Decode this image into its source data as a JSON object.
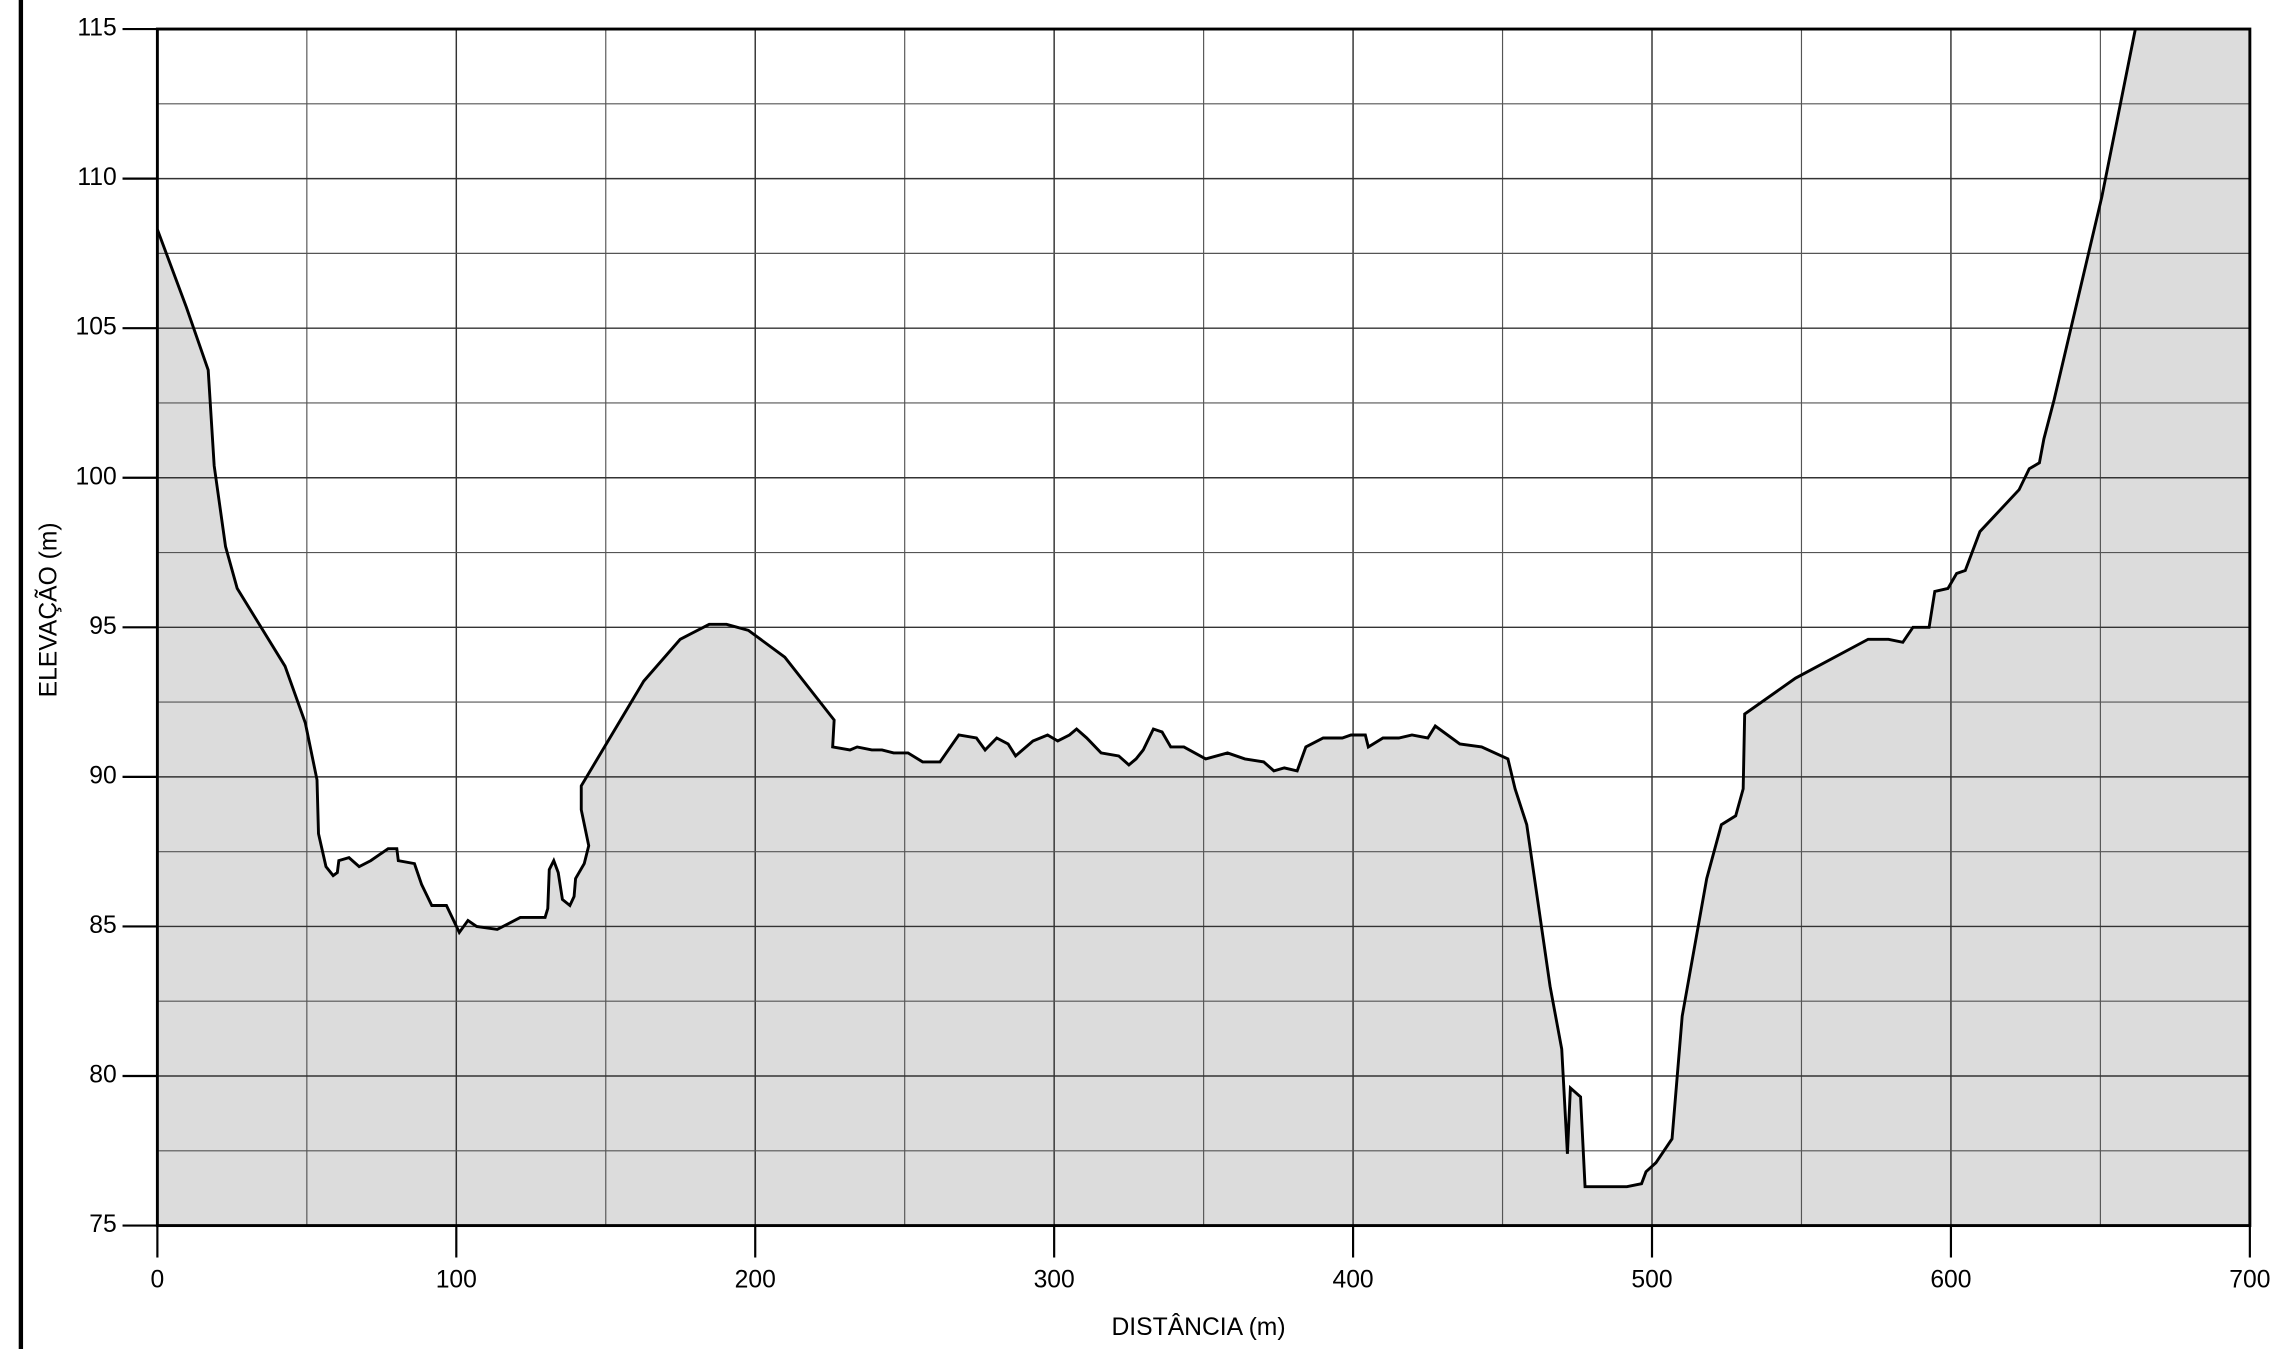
{
  "chart_data": {
    "type": "area",
    "x_label": "DISTÂNCIA  (m)",
    "y_label": "ELEVAÇÃO  (m)",
    "xlim": [
      0,
      700
    ],
    "xticks": [
      0,
      100,
      200,
      300,
      400,
      500,
      600,
      700
    ],
    "ylim": [
      75,
      115
    ],
    "yticks": [
      75,
      80,
      85,
      90,
      95,
      100,
      105,
      110,
      115
    ],
    "grid": true,
    "color": "#dcdcdc",
    "line_color": "#000000",
    "x": [
      0,
      9.7,
      17,
      19,
      22.8,
      26.7,
      42.7,
      49.5,
      53.4,
      53.9,
      56.4,
      58.8,
      60.2,
      60.7,
      64.1,
      67.5,
      71.4,
      77.2,
      80.1,
      80.6,
      86,
      88.4,
      91.8,
      96.7,
      101,
      103.9,
      106.8,
      113.7,
      121.4,
      129.7,
      130.6,
      131.1,
      132.6,
      134.1,
      135.5,
      138,
      139.4,
      139.9,
      142.8,
      144.3,
      141.8,
      141.8,
      162.7,
      174.9,
      184.6,
      190.4,
      197.7,
      209.9,
      226.4,
      225.9,
      231.7,
      234.1,
      239,
      242.4,
      246.3,
      251.1,
      256,
      261.8,
      268.1,
      274,
      276.9,
      280.8,
      284.6,
      287.1,
      292.9,
      297.8,
      301.2,
      305.1,
      307.5,
      310.9,
      315.7,
      321.6,
      325,
      327.4,
      329.8,
      333.2,
      336.1,
      339,
      343.4,
      350.7,
      358,
      363.8,
      370.1,
      373.5,
      377,
      381.3,
      384.2,
      390,
      396.4,
      399.3,
      404.1,
      405.1,
      410,
      415.3,
      419.7,
      425,
      427.5,
      435.7,
      443,
      451.8,
      454.2,
      458.1,
      465.9,
      469.8,
      471.7,
      472.7,
      476.1,
      477.6,
      482.9,
      491.6,
      496.5,
      498,
      501.3,
      506.7,
      510.1,
      518.3,
      523.2,
      528,
      530.5,
      531,
      548,
      572.3,
      579.1,
      583.9,
      587.3,
      592.7,
      594.6,
      599,
      601.9,
      604.8,
      609.7,
      622.8,
      626.2,
      629.6,
      631.1,
      634.5,
      650.5,
      661.7
    ],
    "values": [
      108.3,
      105.7,
      103.6,
      100.4,
      97.7,
      96.3,
      93.7,
      91.8,
      89.9,
      88.1,
      87,
      86.7,
      86.8,
      87.2,
      87.3,
      87,
      87.2,
      87.6,
      87.6,
      87.2,
      87.1,
      86.4,
      85.7,
      85.7,
      84.8,
      85.2,
      85,
      84.9,
      85.3,
      85.3,
      85.6,
      86.9,
      87.2,
      86.8,
      85.9,
      85.7,
      86,
      86.6,
      87.1,
      87.7,
      88.9,
      89.7,
      93.2,
      94.6,
      95.1,
      95.1,
      94.9,
      94,
      91.9,
      91,
      90.9,
      91,
      90.9,
      90.9,
      90.8,
      90.8,
      90.5,
      90.5,
      91.4,
      91.3,
      90.9,
      91.3,
      91.1,
      90.7,
      91.2,
      91.4,
      91.2,
      91.4,
      91.6,
      91.3,
      90.8,
      90.7,
      90.4,
      90.6,
      90.9,
      91.6,
      91.5,
      91,
      91,
      90.6,
      90.8,
      90.6,
      90.5,
      90.2,
      90.3,
      90.2,
      91,
      91.3,
      91.3,
      91.4,
      91.4,
      91,
      91.3,
      91.3,
      91.4,
      91.3,
      91.7,
      91.1,
      91,
      90.6,
      89.6,
      88.4,
      83,
      80.9,
      77.4,
      79.6,
      79.3,
      76.3,
      76.3,
      76.3,
      76.4,
      76.8,
      77.1,
      77.9,
      82,
      86.6,
      88.4,
      88.7,
      89.6,
      92.1,
      93.3,
      94.6,
      94.6,
      94.5,
      95,
      95,
      96.2,
      96.3,
      96.8,
      96.9,
      98.2,
      99.6,
      100.3,
      100.5,
      101.3,
      102.6,
      109.4,
      115
    ]
  }
}
